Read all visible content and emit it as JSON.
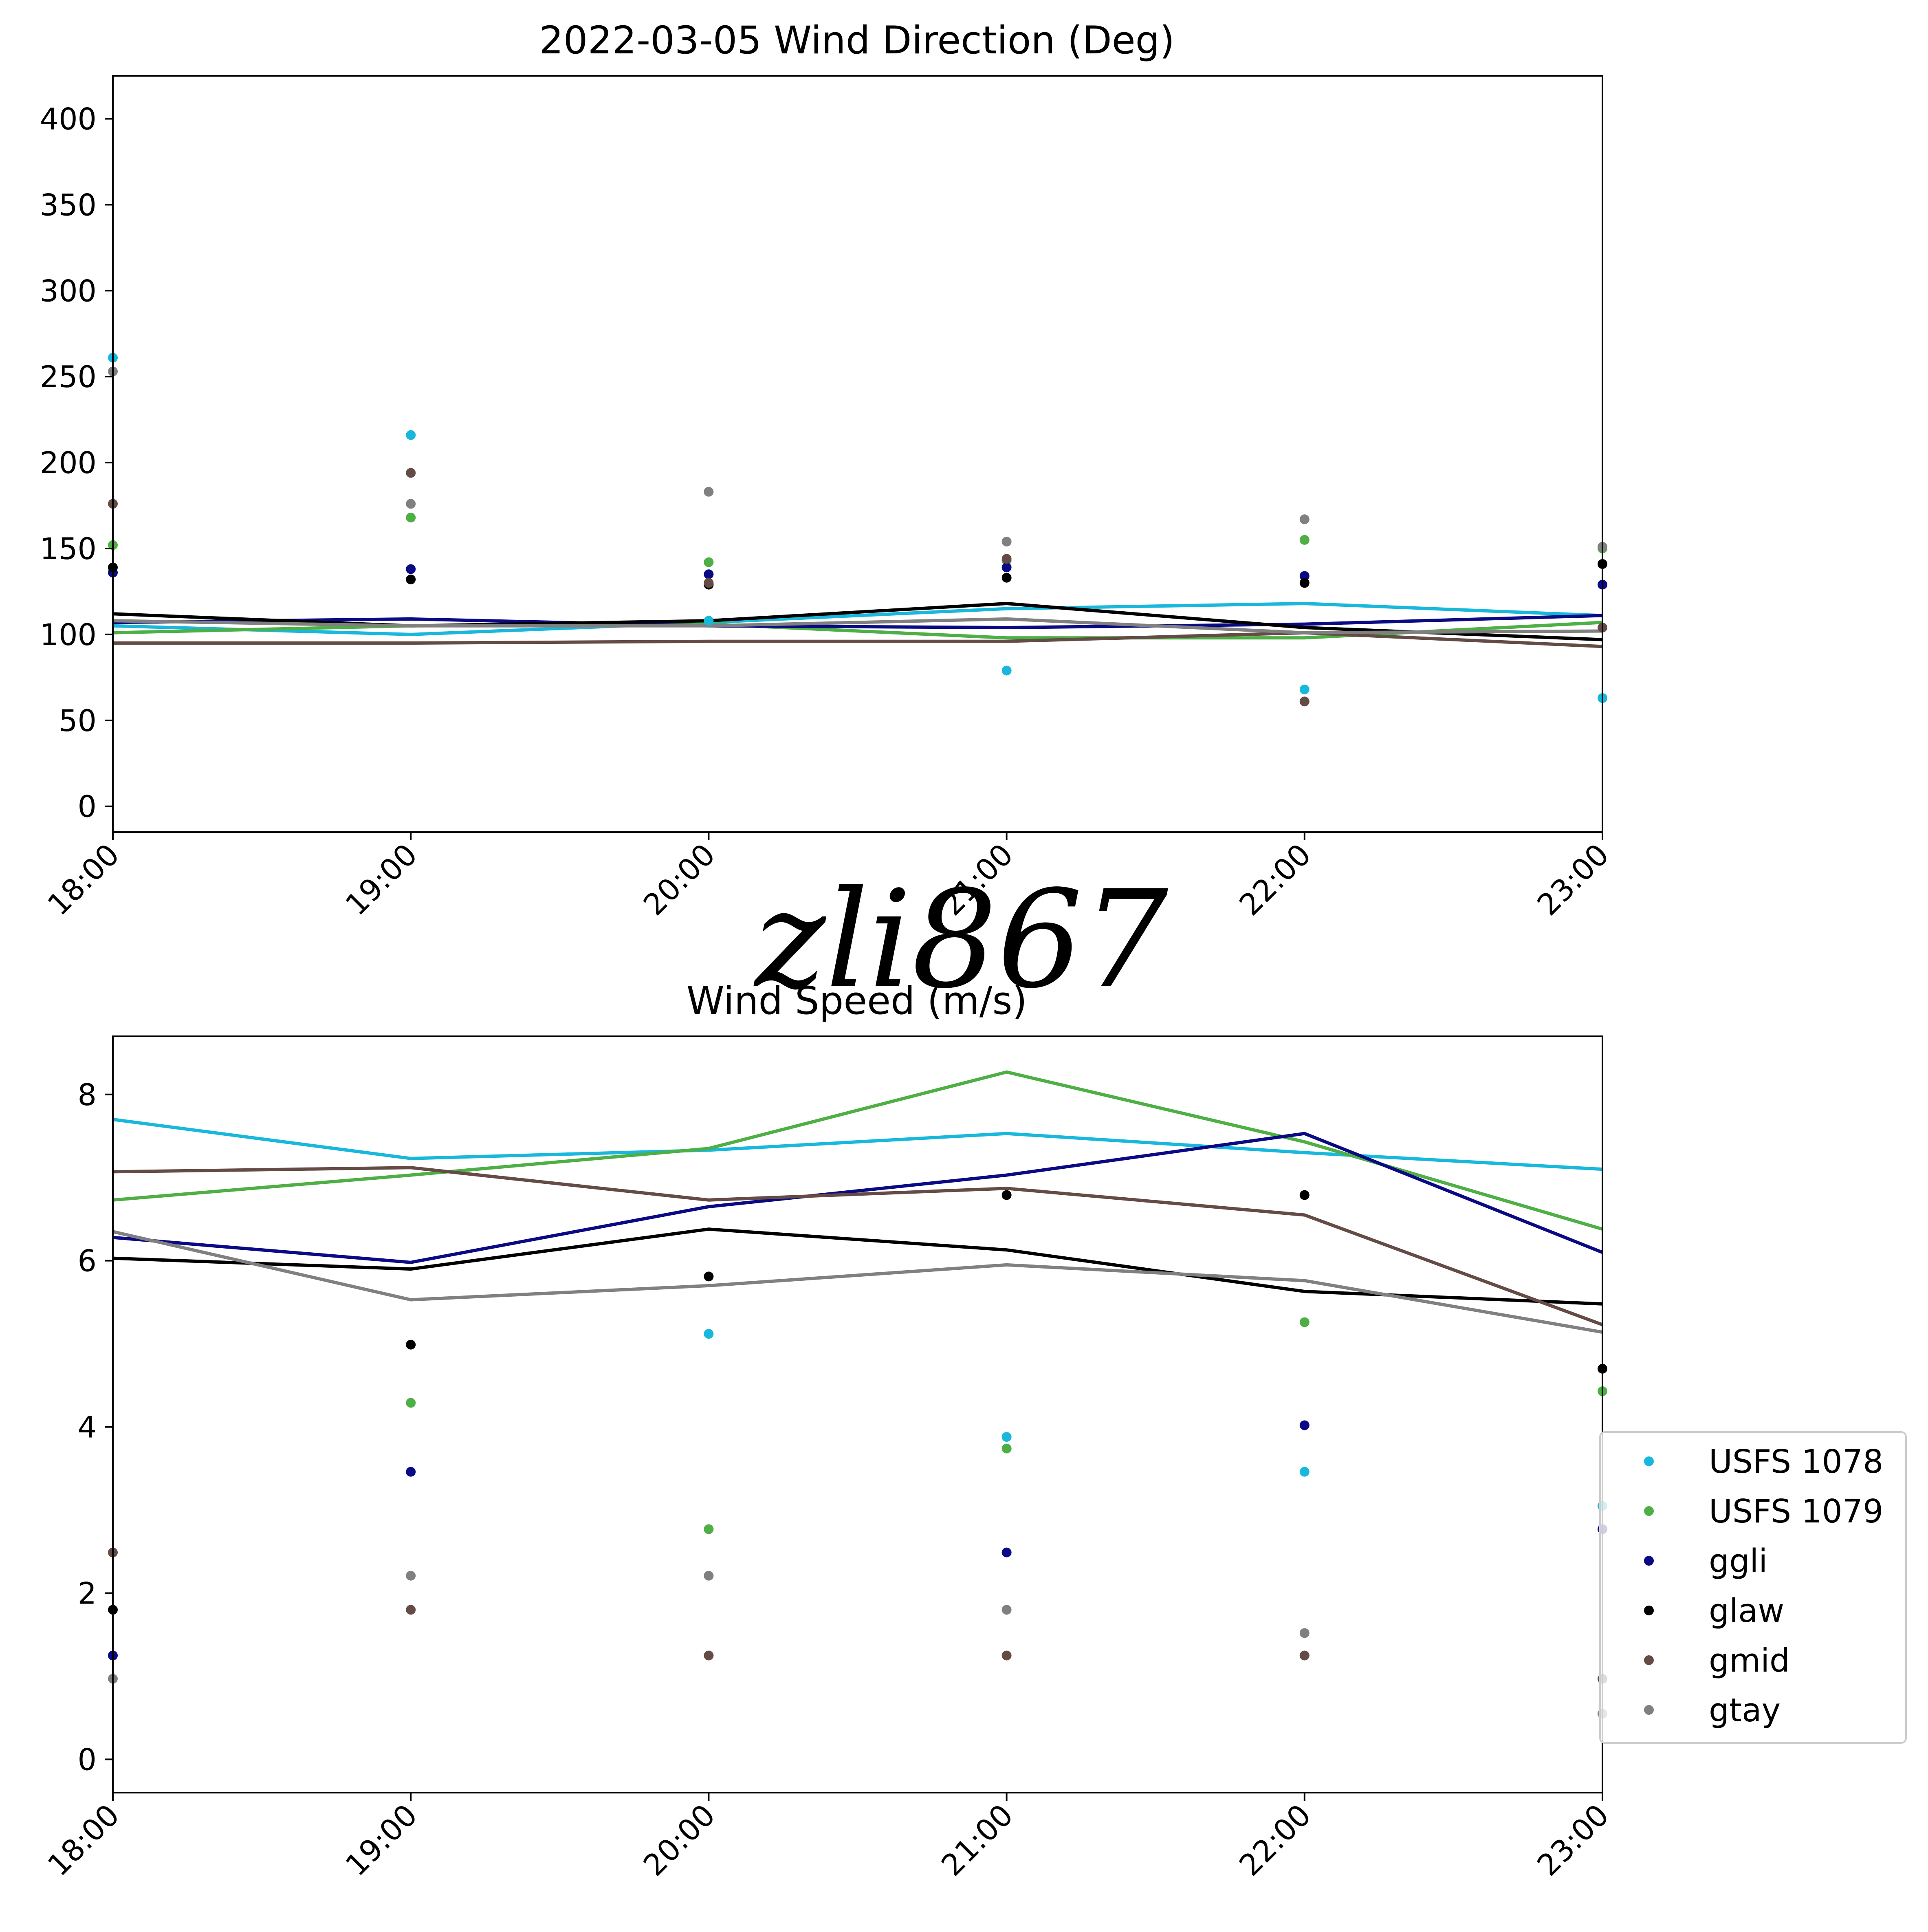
{
  "figure": {
    "signature": "zli867",
    "legend": [
      {
        "name": "USFS 1078",
        "color": "#17b8dc"
      },
      {
        "name": "USFS 1079",
        "color": "#4daf44"
      },
      {
        "name": "ggli",
        "color": "#0a0a85"
      },
      {
        "name": "glaw",
        "color": "#000000"
      },
      {
        "name": "gmid",
        "color": "#654b45"
      },
      {
        "name": "gtay",
        "color": "#808080"
      }
    ]
  },
  "chart_data": [
    {
      "type": "line",
      "title": "2022-03-05 Wind Direction (Deg)",
      "xlabel": "",
      "ylabel": "",
      "x": [
        "18:00",
        "19:00",
        "20:00",
        "21:00",
        "22:00",
        "23:00"
      ],
      "ylim": [
        -15,
        425
      ],
      "yticks": [
        0,
        50,
        100,
        150,
        200,
        250,
        300,
        350,
        400
      ],
      "grid": false,
      "series": [
        {
          "name": "USFS 1078",
          "color": "#17b8dc",
          "line": [
            105,
            100,
            107,
            115,
            118,
            111
          ],
          "points": [
            261,
            216,
            108,
            79,
            68,
            63
          ]
        },
        {
          "name": "USFS 1079",
          "color": "#4daf44",
          "line": [
            101,
            105,
            106,
            98,
            98,
            107
          ],
          "points": [
            152,
            168,
            142,
            143,
            155,
            150
          ]
        },
        {
          "name": "ggli",
          "color": "#0a0a85",
          "line": [
            107,
            109,
            105,
            104,
            106,
            111
          ],
          "points": [
            136,
            138,
            135,
            139,
            134,
            129
          ]
        },
        {
          "name": "glaw",
          "color": "#000000",
          "line": [
            112,
            105,
            108,
            118,
            104,
            97
          ],
          "points": [
            139,
            132,
            129,
            133,
            130,
            141
          ]
        },
        {
          "name": "gmid",
          "color": "#654b45",
          "line": [
            95,
            95,
            96,
            96,
            101,
            93
          ],
          "points": [
            176,
            194,
            130,
            144,
            61,
            104
          ]
        },
        {
          "name": "gtay",
          "color": "#808080",
          "line": [
            108,
            105,
            105,
            109,
            101,
            102
          ],
          "points": [
            253,
            176,
            183,
            154,
            167,
            151
          ]
        }
      ]
    },
    {
      "type": "line",
      "title": "Wind Speed (m/s)",
      "xlabel": "",
      "ylabel": "",
      "x": [
        "18:00",
        "19:00",
        "20:00",
        "21:00",
        "22:00",
        "23:00"
      ],
      "ylim": [
        -0.4,
        8.7
      ],
      "yticks": [
        0,
        2,
        4,
        6,
        8
      ],
      "grid": false,
      "legend_position": "lower right, outside",
      "series": [
        {
          "name": "USFS 1078",
          "color": "#17b8dc",
          "line": [
            7.7,
            7.23,
            7.33,
            7.53,
            7.3,
            7.1
          ],
          "points": [
            null,
            null,
            5.12,
            3.88,
            3.46,
            3.05
          ]
        },
        {
          "name": "USFS 1079",
          "color": "#4daf44",
          "line": [
            6.73,
            7.03,
            7.35,
            8.27,
            7.43,
            6.38
          ],
          "points": [
            null,
            4.29,
            2.77,
            3.74,
            5.26,
            4.43
          ]
        },
        {
          "name": "ggli",
          "color": "#0a0a85",
          "line": [
            6.28,
            5.98,
            6.65,
            7.03,
            7.53,
            6.1
          ],
          "points": [
            1.25,
            3.46,
            null,
            2.49,
            4.02,
            2.77
          ]
        },
        {
          "name": "glaw",
          "color": "#000000",
          "line": [
            6.03,
            5.9,
            6.38,
            6.13,
            5.63,
            5.48
          ],
          "points": [
            1.8,
            4.99,
            5.81,
            6.79,
            6.79,
            4.7
          ]
        },
        {
          "name": "gmid",
          "color": "#654b45",
          "line": [
            7.07,
            7.12,
            6.73,
            6.87,
            6.55,
            5.23
          ],
          "points": [
            2.49,
            1.8,
            1.25,
            1.25,
            1.25,
            0.97
          ]
        },
        {
          "name": "gtay",
          "color": "#808080",
          "line": [
            6.35,
            5.53,
            5.7,
            5.95,
            5.76,
            5.14
          ],
          "points": [
            0.97,
            2.21,
            2.21,
            1.8,
            1.52,
            0.55
          ]
        }
      ]
    }
  ]
}
